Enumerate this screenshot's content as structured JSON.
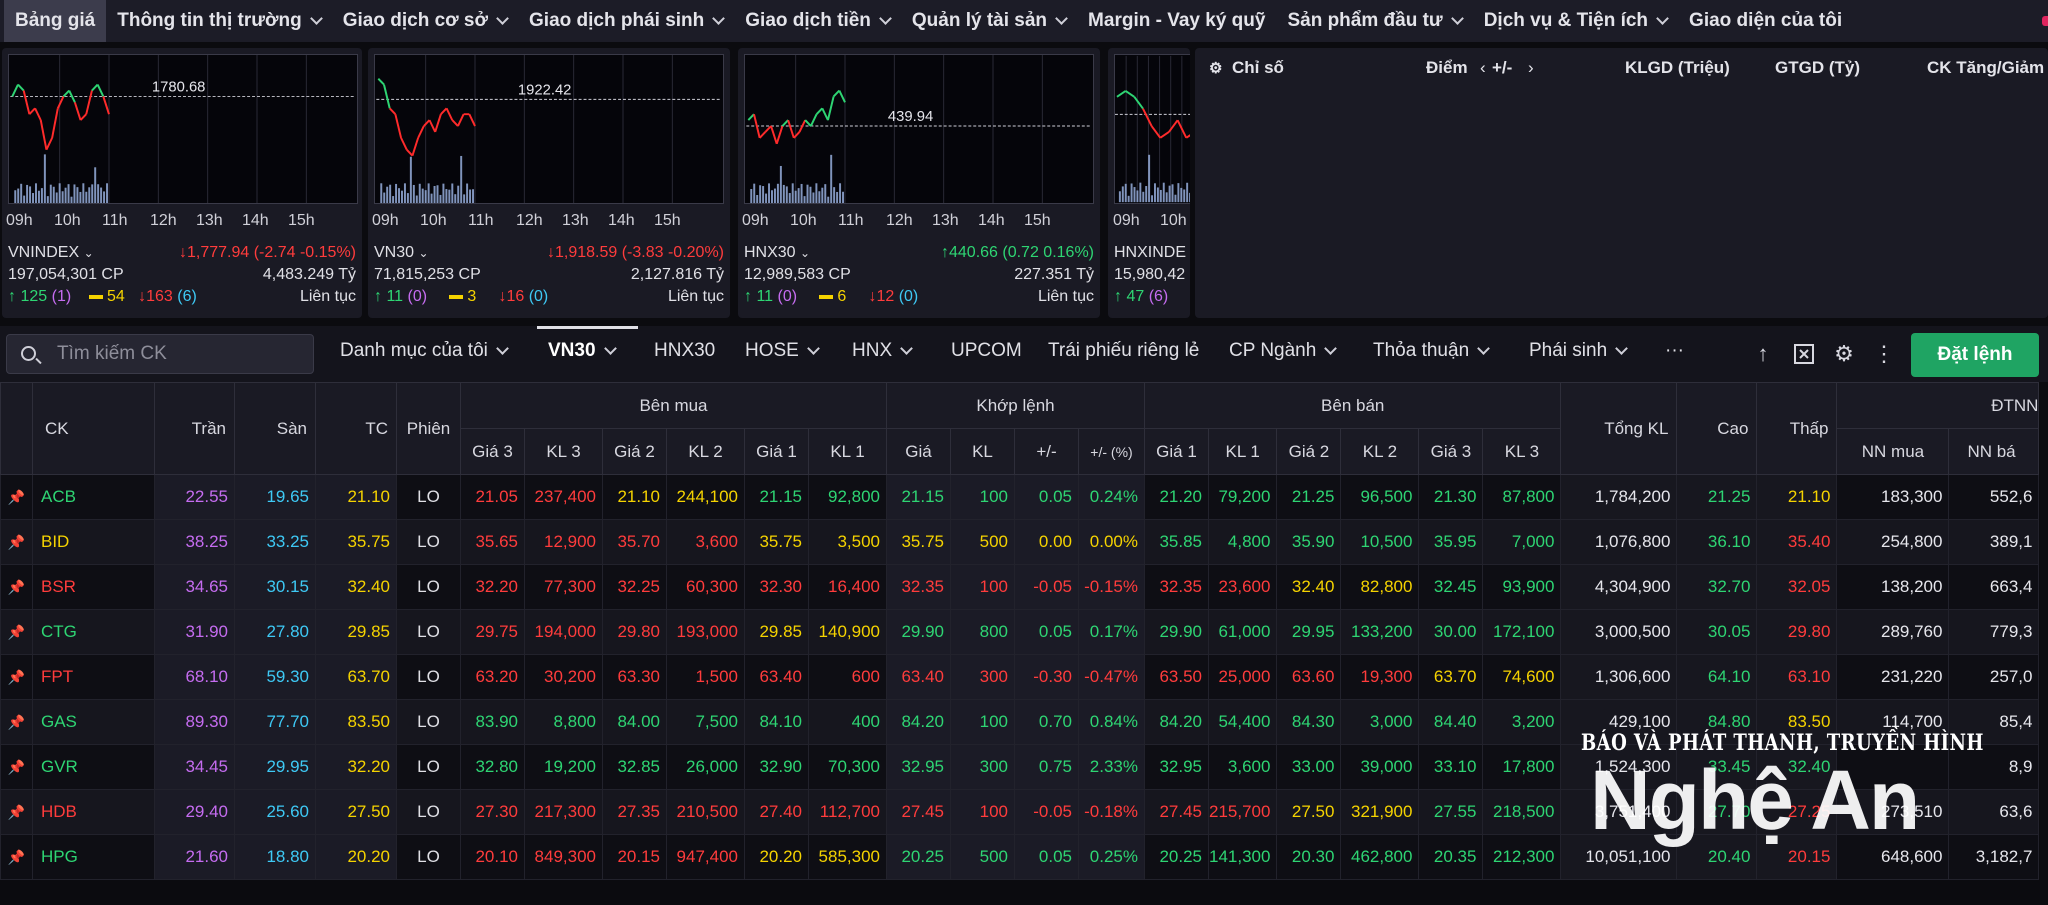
{
  "nav": {
    "items": [
      {
        "label": "Bảng giá",
        "dropdown": false
      },
      {
        "label": "Thông tin thị trường",
        "dropdown": true
      },
      {
        "label": "Giao dịch cơ sở",
        "dropdown": true
      },
      {
        "label": "Giao dịch phái sinh",
        "dropdown": true
      },
      {
        "label": "Giao dịch tiền",
        "dropdown": true
      },
      {
        "label": "Quản lý tài sản",
        "dropdown": true
      },
      {
        "label": "Margin - Vay ký quỹ",
        "dropdown": false
      },
      {
        "label": "Sản phẩm đầu tư",
        "dropdown": true
      },
      {
        "label": "Dịch vụ & Tiện ích",
        "dropdown": true
      },
      {
        "label": "Giao diện của tôi",
        "dropdown": false
      }
    ]
  },
  "time_labels": [
    "09h",
    "10h",
    "11h",
    "12h",
    "13h",
    "14h",
    "15h"
  ],
  "panels": [
    {
      "name": "VNINDEX",
      "ref_value": "1780.68",
      "change": "1,777.94 (-2.74 -0.15%)",
      "direction": "down",
      "volume": "197,054,301 CP",
      "value": "4,483.249 Tỷ",
      "up": "125",
      "up_ceiling": "(1)",
      "ref": "54",
      "down": "163",
      "down_floor": "(6)",
      "status": "Liên tục"
    },
    {
      "name": "VN30",
      "ref_value": "1922.42",
      "change": "1,918.59 (-3.83 -0.20%)",
      "direction": "down",
      "volume": "71,815,253 CP",
      "value": "2,127.816 Tỷ",
      "up": "11",
      "up_ceiling": "(0)",
      "ref": "3",
      "down": "16",
      "down_floor": "(0)",
      "status": "Liên tục"
    },
    {
      "name": "HNX30",
      "ref_value": "439.94",
      "change": "440.66 (0.72 0.16%)",
      "direction": "up",
      "volume": "12,989,583 CP",
      "value": "227.351 Tỷ",
      "up": "11",
      "up_ceiling": "(0)",
      "ref": "6",
      "down": "12",
      "down_floor": "(0)",
      "status": "Liên tục"
    },
    {
      "name": "HNXINDE",
      "volume": "15,980,42",
      "up": "47",
      "up_ceiling": "(6)"
    }
  ],
  "index_table": {
    "title": "Chỉ số",
    "col_point": "Điểm",
    "col_change": "+/-",
    "col_klgd": "KLGD (Triệu)",
    "col_gtgd": "GTGD (Tỷ)",
    "col_ck": "CK Tăng/Giảm"
  },
  "toolbar": {
    "search_placeholder": "Tìm kiếm CK",
    "tabs": [
      {
        "label": "Danh mục của tôi",
        "dropdown": true
      },
      {
        "label": "VN30",
        "dropdown": true,
        "active": true
      },
      {
        "label": "HNX30",
        "dropdown": false
      },
      {
        "label": "HOSE",
        "dropdown": true
      },
      {
        "label": "HNX",
        "dropdown": true
      },
      {
        "label": "UPCOM",
        "dropdown": false
      },
      {
        "label": "Trái phiếu riêng lẻ",
        "dropdown": false
      },
      {
        "label": "CP Ngành",
        "dropdown": true
      },
      {
        "label": "Thỏa thuận",
        "dropdown": true
      },
      {
        "label": "Phái sinh",
        "dropdown": true
      },
      {
        "label": "···",
        "dropdown": false
      }
    ],
    "order_button": "Đặt lệnh"
  },
  "table": {
    "headers": {
      "ck": "CK",
      "tran": "Trần",
      "san": "Sàn",
      "tc": "TC",
      "phien": "Phiên",
      "ben_mua": "Bên mua",
      "khop_lenh": "Khớp lệnh",
      "ben_ban": "Bên bán",
      "tong_kl": "Tổng KL",
      "cao": "Cao",
      "thap": "Thấp",
      "dtnn": "ĐTNN",
      "gia3": "Giá 3",
      "kl3": "KL 3",
      "gia2": "Giá 2",
      "kl2": "KL 2",
      "gia1": "Giá 1",
      "kl1": "KL 1",
      "gia": "Giá",
      "kl": "KL",
      "change": "+/-",
      "change_pct": "+/- (%)",
      "nn_mua": "NN mua",
      "nn_ban": "NN bá"
    },
    "rows": [
      {
        "sym": "ACB",
        "c": "up",
        "tran": "22.55",
        "san": "19.65",
        "tc": "21.10",
        "phien": "LO",
        "b": [
          [
            "21.05",
            "237,400",
            "down"
          ],
          [
            "21.10",
            "244,100",
            "ref"
          ],
          [
            "21.15",
            "92,800",
            "up"
          ]
        ],
        "m": [
          "21.15",
          "100",
          "0.05",
          "0.24%",
          "up"
        ],
        "s": [
          [
            "21.20",
            "79,200",
            "up"
          ],
          [
            "21.25",
            "96,500",
            "up"
          ],
          [
            "21.30",
            "87,800",
            "up"
          ]
        ],
        "tong": "1,784,200",
        "cao": [
          "21.25",
          "up"
        ],
        "thap": [
          "21.10",
          "ref"
        ],
        "nn_mua": "183,300",
        "nn_ban": "552,6"
      },
      {
        "sym": "BID",
        "c": "ref",
        "tran": "38.25",
        "san": "33.25",
        "tc": "35.75",
        "phien": "LO",
        "b": [
          [
            "35.65",
            "12,900",
            "down"
          ],
          [
            "35.70",
            "3,600",
            "down"
          ],
          [
            "35.75",
            "3,500",
            "ref"
          ]
        ],
        "m": [
          "35.75",
          "500",
          "0.00",
          "0.00%",
          "ref"
        ],
        "s": [
          [
            "35.85",
            "4,800",
            "up"
          ],
          [
            "35.90",
            "10,500",
            "up"
          ],
          [
            "35.95",
            "7,000",
            "up"
          ]
        ],
        "tong": "1,076,800",
        "cao": [
          "36.10",
          "up"
        ],
        "thap": [
          "35.40",
          "down"
        ],
        "nn_mua": "254,800",
        "nn_ban": "389,1"
      },
      {
        "sym": "BSR",
        "c": "down",
        "tran": "34.65",
        "san": "30.15",
        "tc": "32.40",
        "phien": "LO",
        "b": [
          [
            "32.20",
            "77,300",
            "down"
          ],
          [
            "32.25",
            "60,300",
            "down"
          ],
          [
            "32.30",
            "16,400",
            "down"
          ]
        ],
        "m": [
          "32.35",
          "100",
          "-0.05",
          "-0.15%",
          "down"
        ],
        "s": [
          [
            "32.35",
            "23,600",
            "down"
          ],
          [
            "32.40",
            "82,800",
            "ref"
          ],
          [
            "32.45",
            "93,900",
            "up"
          ]
        ],
        "tong": "4,304,900",
        "cao": [
          "32.70",
          "up"
        ],
        "thap": [
          "32.05",
          "down"
        ],
        "nn_mua": "138,200",
        "nn_ban": "663,4"
      },
      {
        "sym": "CTG",
        "c": "up",
        "tran": "31.90",
        "san": "27.80",
        "tc": "29.85",
        "phien": "LO",
        "b": [
          [
            "29.75",
            "194,000",
            "down"
          ],
          [
            "29.80",
            "193,000",
            "down"
          ],
          [
            "29.85",
            "140,900",
            "ref"
          ]
        ],
        "m": [
          "29.90",
          "800",
          "0.05",
          "0.17%",
          "up"
        ],
        "s": [
          [
            "29.90",
            "61,000",
            "up"
          ],
          [
            "29.95",
            "133,200",
            "up"
          ],
          [
            "30.00",
            "172,100",
            "up"
          ]
        ],
        "tong": "3,000,500",
        "cao": [
          "30.05",
          "up"
        ],
        "thap": [
          "29.80",
          "down"
        ],
        "nn_mua": "289,760",
        "nn_ban": "779,3"
      },
      {
        "sym": "FPT",
        "c": "down",
        "tran": "68.10",
        "san": "59.30",
        "tc": "63.70",
        "phien": "LO",
        "b": [
          [
            "63.20",
            "30,200",
            "down"
          ],
          [
            "63.30",
            "1,500",
            "down"
          ],
          [
            "63.40",
            "600",
            "down"
          ]
        ],
        "m": [
          "63.40",
          "300",
          "-0.30",
          "-0.47%",
          "down"
        ],
        "s": [
          [
            "63.50",
            "25,000",
            "down"
          ],
          [
            "63.60",
            "19,300",
            "down"
          ],
          [
            "63.70",
            "74,600",
            "ref"
          ]
        ],
        "tong": "1,306,600",
        "cao": [
          "64.10",
          "up"
        ],
        "thap": [
          "63.10",
          "down"
        ],
        "nn_mua": "231,220",
        "nn_ban": "257,0"
      },
      {
        "sym": "GAS",
        "c": "up",
        "tran": "89.30",
        "san": "77.70",
        "tc": "83.50",
        "phien": "LO",
        "b": [
          [
            "83.90",
            "8,800",
            "up"
          ],
          [
            "84.00",
            "7,500",
            "up"
          ],
          [
            "84.10",
            "400",
            "up"
          ]
        ],
        "m": [
          "84.20",
          "100",
          "0.70",
          "0.84%",
          "up"
        ],
        "s": [
          [
            "84.20",
            "54,400",
            "up"
          ],
          [
            "84.30",
            "3,000",
            "up"
          ],
          [
            "84.40",
            "3,200",
            "up"
          ]
        ],
        "tong": "429,100",
        "cao": [
          "84.80",
          "up"
        ],
        "thap": [
          "83.50",
          "ref"
        ],
        "nn_mua": "114,700",
        "nn_ban": "85,4"
      },
      {
        "sym": "GVR",
        "c": "up",
        "tran": "34.45",
        "san": "29.95",
        "tc": "32.20",
        "phien": "LO",
        "b": [
          [
            "32.80",
            "19,200",
            "up"
          ],
          [
            "32.85",
            "26,000",
            "up"
          ],
          [
            "32.90",
            "70,300",
            "up"
          ]
        ],
        "m": [
          "32.95",
          "300",
          "0.75",
          "2.33%",
          "up"
        ],
        "s": [
          [
            "32.95",
            "3,600",
            "up"
          ],
          [
            "33.00",
            "39,000",
            "up"
          ],
          [
            "33.10",
            "17,800",
            "up"
          ]
        ],
        "tong": "1,524,300",
        "cao": [
          "33.45",
          "up"
        ],
        "thap": [
          "32.40",
          "up"
        ],
        "nn_mua": "",
        "nn_ban": "8,9"
      },
      {
        "sym": "HDB",
        "c": "down",
        "tran": "29.40",
        "san": "25.60",
        "tc": "27.50",
        "phien": "LO",
        "b": [
          [
            "27.30",
            "217,300",
            "down"
          ],
          [
            "27.35",
            "210,500",
            "down"
          ],
          [
            "27.40",
            "112,700",
            "down"
          ]
        ],
        "m": [
          "27.45",
          "100",
          "-0.05",
          "-0.18%",
          "down"
        ],
        "s": [
          [
            "27.45",
            "215,700",
            "down"
          ],
          [
            "27.50",
            "321,900",
            "ref"
          ],
          [
            "27.55",
            "218,500",
            "up"
          ]
        ],
        "tong": "3,751,400",
        "cao": [
          "27.70",
          "up"
        ],
        "thap": [
          "27.25",
          "down"
        ],
        "nn_mua": "273,510",
        "nn_ban": "63,6"
      },
      {
        "sym": "HPG",
        "c": "up",
        "tran": "21.60",
        "san": "18.80",
        "tc": "20.20",
        "phien": "LO",
        "b": [
          [
            "20.10",
            "849,300",
            "down"
          ],
          [
            "20.15",
            "947,400",
            "down"
          ],
          [
            "20.20",
            "585,300",
            "ref"
          ]
        ],
        "m": [
          "20.25",
          "500",
          "0.05",
          "0.25%",
          "up"
        ],
        "s": [
          [
            "20.25",
            "141,300",
            "up"
          ],
          [
            "20.30",
            "462,800",
            "up"
          ],
          [
            "20.35",
            "212,300",
            "up"
          ]
        ],
        "tong": "10,051,100",
        "cao": [
          "20.40",
          "up"
        ],
        "thap": [
          "20.15",
          "down"
        ],
        "nn_mua": "648,600",
        "nn_ban": "3,182,7"
      }
    ]
  },
  "watermark": {
    "line1": "BÁO VÀ PHÁT THANH, TRUYỀN HÌNH",
    "line2": "Nghệ An"
  },
  "colors": {
    "up": "#2ed573",
    "down": "#ff3c3c",
    "ref": "#f5d300",
    "ceiling": "#c56cf0",
    "floor": "#3ec9f5",
    "accent": "#1fa463"
  }
}
